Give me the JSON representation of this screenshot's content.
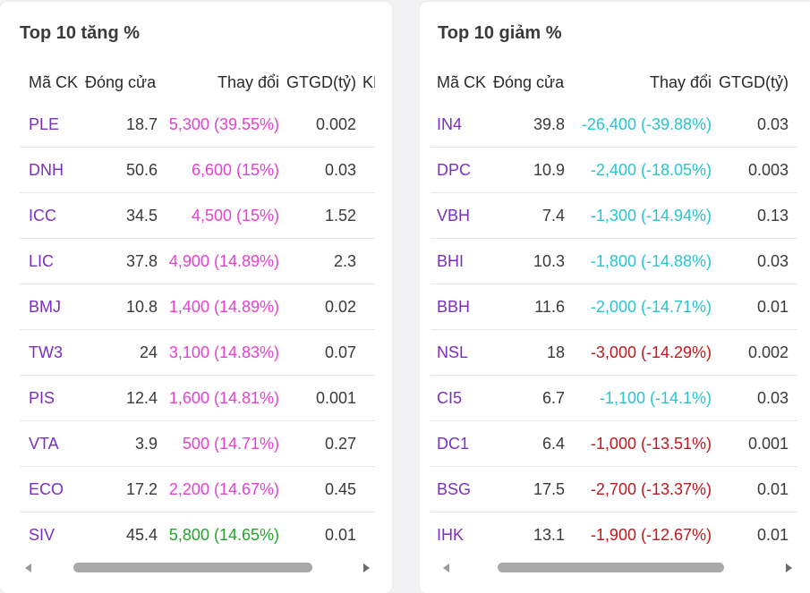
{
  "gainers": {
    "title": "Top 10 tăng %",
    "headers": {
      "symbol": "Mã CK",
      "close": "Đóng cửa",
      "change": "Thay đổi",
      "value": "GTGD(tỷ)",
      "volume": "KL"
    },
    "rows": [
      {
        "symbol": "PLE",
        "close": "18.7",
        "change": "5,300 (39.55%)",
        "value": "0.002",
        "color": "#e83fd2"
      },
      {
        "symbol": "DNH",
        "close": "50.6",
        "change": "6,600 (15%)",
        "value": "0.03",
        "color": "#e83fd2"
      },
      {
        "symbol": "ICC",
        "close": "34.5",
        "change": "4,500 (15%)",
        "value": "1.52",
        "color": "#e83fd2"
      },
      {
        "symbol": "LIC",
        "close": "37.8",
        "change": "4,900 (14.89%)",
        "value": "2.3",
        "color": "#e83fd2"
      },
      {
        "symbol": "BMJ",
        "close": "10.8",
        "change": "1,400 (14.89%)",
        "value": "0.02",
        "color": "#e83fd2"
      },
      {
        "symbol": "TW3",
        "close": "24",
        "change": "3,100 (14.83%)",
        "value": "0.07",
        "color": "#e83fd2"
      },
      {
        "symbol": "PIS",
        "close": "12.4",
        "change": "1,600 (14.81%)",
        "value": "0.001",
        "color": "#e83fd2"
      },
      {
        "symbol": "VTA",
        "close": "3.9",
        "change": "500 (14.71%)",
        "value": "0.27",
        "color": "#e83fd2"
      },
      {
        "symbol": "ECO",
        "close": "17.2",
        "change": "2,200 (14.67%)",
        "value": "0.45",
        "color": "#e83fd2"
      },
      {
        "symbol": "SIV",
        "close": "45.4",
        "change": "5,800 (14.65%)",
        "value": "0.01",
        "color": "#22a52a"
      }
    ]
  },
  "losers": {
    "title": "Top 10 giảm %",
    "headers": {
      "symbol": "Mã CK",
      "close": "Đóng cửa",
      "change": "Thay đổi",
      "value": "GTGD(tỷ)"
    },
    "rows": [
      {
        "symbol": "IN4",
        "close": "39.8",
        "change": "-26,400 (-39.88%)",
        "value": "0.03",
        "color": "#27c5cf"
      },
      {
        "symbol": "DPC",
        "close": "10.9",
        "change": "-2,400 (-18.05%)",
        "value": "0.003",
        "color": "#27c5cf"
      },
      {
        "symbol": "VBH",
        "close": "7.4",
        "change": "-1,300 (-14.94%)",
        "value": "0.13",
        "color": "#27c5cf"
      },
      {
        "symbol": "BHI",
        "close": "10.3",
        "change": "-1,800 (-14.88%)",
        "value": "0.03",
        "color": "#27c5cf"
      },
      {
        "symbol": "BBH",
        "close": "11.6",
        "change": "-2,000 (-14.71%)",
        "value": "0.01",
        "color": "#27c5cf"
      },
      {
        "symbol": "NSL",
        "close": "18",
        "change": "-3,000 (-14.29%)",
        "value": "0.002",
        "color": "#c0181e"
      },
      {
        "symbol": "CI5",
        "close": "6.7",
        "change": "-1,100 (-14.1%)",
        "value": "0.03",
        "color": "#27c5cf"
      },
      {
        "symbol": "DC1",
        "close": "6.4",
        "change": "-1,000 (-13.51%)",
        "value": "0.001",
        "color": "#c0181e"
      },
      {
        "symbol": "BSG",
        "close": "17.5",
        "change": "-2,700 (-13.37%)",
        "value": "0.01",
        "color": "#c0181e"
      },
      {
        "symbol": "IHK",
        "close": "13.1",
        "change": "-1,900 (-12.67%)",
        "value": "0.01",
        "color": "#c0181e"
      }
    ]
  },
  "colors": {
    "symbol": "#7b2fbe",
    "ceiling": "#e83fd2",
    "up": "#22a52a",
    "floor": "#27c5cf",
    "down": "#c0181e"
  },
  "icons": {
    "scroll_left": "triangle-left-icon",
    "scroll_right": "triangle-right-icon"
  }
}
